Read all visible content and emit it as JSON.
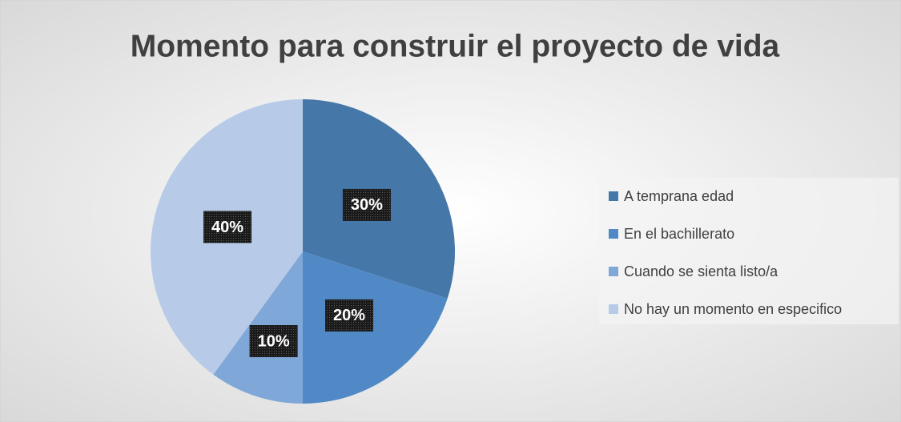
{
  "chart_data": {
    "type": "pie",
    "title": "Momento para construir el proyecto de vida",
    "categories": [
      "A temprana edad",
      "En el bachillerato",
      "Cuando se sienta listo/a",
      "No hay un momento en especifico"
    ],
    "values": [
      30,
      20,
      10,
      40
    ],
    "value_labels": [
      "30%",
      "20%",
      "10%",
      "40%"
    ],
    "colors": [
      "#4677a9",
      "#5089c6",
      "#7fa7d8",
      "#b7cbe8"
    ],
    "legend": "right"
  }
}
